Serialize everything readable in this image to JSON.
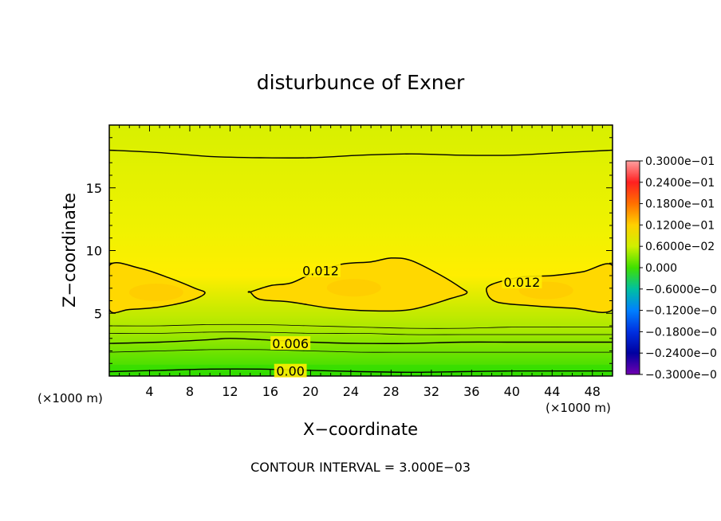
{
  "chart_data": {
    "type": "heatmap",
    "title": "disturbunce of Exner",
    "xlabel": "X−coordinate",
    "ylabel": "Z−coordinate",
    "x_unit_left": "(×1000 m)",
    "x_unit_right": "(×1000 m)",
    "xlim": [
      0,
      50
    ],
    "ylim": [
      0,
      20
    ],
    "x_ticks": [
      4,
      8,
      12,
      16,
      20,
      24,
      28,
      32,
      36,
      40,
      44,
      48
    ],
    "y_ticks": [
      5,
      10,
      15
    ],
    "contour_interval_text": "CONTOUR INTERVAL = 3.000E−03",
    "contour_labels": [
      {
        "text": "0.012",
        "x": 21,
        "z": 8.4
      },
      {
        "text": "0.012",
        "x": 41,
        "z": 7.5
      },
      {
        "text": "0.006",
        "x": 18,
        "z": 2.6
      },
      {
        "text": "0.00",
        "x": 18,
        "z": 0.4
      }
    ],
    "colorbar": {
      "labels": [
        "0.3000e−01",
        "0.2400e−01",
        "0.1800e−01",
        "0.1200e−01",
        "0.6000e−02",
        "0.000",
        "−0.6000e−0",
        "−0.1200e−0",
        "−0.1800e−0",
        "−0.2400e−0",
        "−0.3000e−0"
      ],
      "colors": [
        "#ffa0a0",
        "#ff2020",
        "#ff7000",
        "#ffd000",
        "#d0f000",
        "#40e000",
        "#00c0a0",
        "#0080ff",
        "#0030e0",
        "#0000a0",
        "#7000b0"
      ]
    },
    "field_colors": {
      "top": "#d8f000",
      "mid": "#ffee00",
      "core": "#ffcc00",
      "low": "#a8e800",
      "bottom": "#30dd00"
    },
    "contours": [
      {
        "level": "upper",
        "x": [
          0,
          5,
          10,
          15,
          20,
          25,
          30,
          35,
          40,
          45,
          50
        ],
        "z": [
          18.0,
          17.8,
          17.5,
          17.4,
          17.4,
          17.6,
          17.7,
          17.6,
          17.6,
          17.8,
          18.0
        ]
      },
      {
        "level": "0.006a",
        "x": [
          0,
          5,
          10,
          15,
          20,
          25,
          30,
          35,
          40,
          45,
          50
        ],
        "z": [
          4.0,
          4.0,
          4.1,
          4.1,
          4.0,
          3.9,
          3.8,
          3.8,
          3.9,
          3.9,
          3.9
        ]
      },
      {
        "level": "0.006b",
        "x": [
          0,
          5,
          10,
          15,
          20,
          25,
          30,
          35,
          40,
          45,
          50
        ],
        "z": [
          3.4,
          3.4,
          3.5,
          3.5,
          3.4,
          3.4,
          3.3,
          3.3,
          3.3,
          3.3,
          3.3
        ]
      },
      {
        "level": "0.006",
        "x": [
          0,
          5,
          10,
          12,
          15,
          20,
          25,
          30,
          35,
          40,
          45,
          50
        ],
        "z": [
          2.6,
          2.7,
          2.9,
          3.0,
          2.9,
          2.7,
          2.6,
          2.6,
          2.7,
          2.7,
          2.7,
          2.7
        ]
      },
      {
        "level": "low",
        "x": [
          0,
          5,
          10,
          15,
          20,
          25,
          30,
          35,
          40,
          45,
          50
        ],
        "z": [
          1.9,
          2.0,
          2.1,
          2.1,
          2.0,
          1.9,
          1.9,
          1.9,
          1.9,
          1.9,
          1.9
        ]
      },
      {
        "level": "0.000",
        "x": [
          0,
          5,
          10,
          15,
          20,
          25,
          30,
          35,
          40,
          45,
          50
        ],
        "z": [
          0.35,
          0.45,
          0.55,
          0.55,
          0.45,
          0.35,
          0.3,
          0.35,
          0.4,
          0.4,
          0.4
        ]
      }
    ],
    "closed_contours": [
      {
        "level": "0.012-left",
        "x": [
          0,
          3,
          6,
          8.5,
          9.5,
          8,
          5,
          2,
          0
        ],
        "z": [
          8.8,
          8.6,
          7.8,
          7.0,
          6.6,
          6.0,
          5.5,
          5.3,
          5.3
        ]
      },
      {
        "level": "0.012-center",
        "x": [
          14,
          16,
          18,
          20,
          23,
          26,
          28,
          30,
          33,
          35,
          35.5,
          34,
          30,
          26,
          22,
          18,
          15,
          14
        ],
        "z": [
          6.7,
          7.2,
          7.4,
          8.1,
          8.9,
          9.1,
          9.4,
          9.2,
          8.0,
          7.0,
          6.6,
          6.2,
          5.3,
          5.2,
          5.4,
          5.9,
          6.1,
          6.7
        ]
      },
      {
        "level": "0.012-right",
        "x": [
          50,
          47,
          44,
          41,
          38,
          37.5,
          38.5,
          42,
          46,
          50
        ],
        "z": [
          8.8,
          8.3,
          8.0,
          7.9,
          7.3,
          6.7,
          5.9,
          5.6,
          5.4,
          5.3
        ]
      }
    ]
  }
}
